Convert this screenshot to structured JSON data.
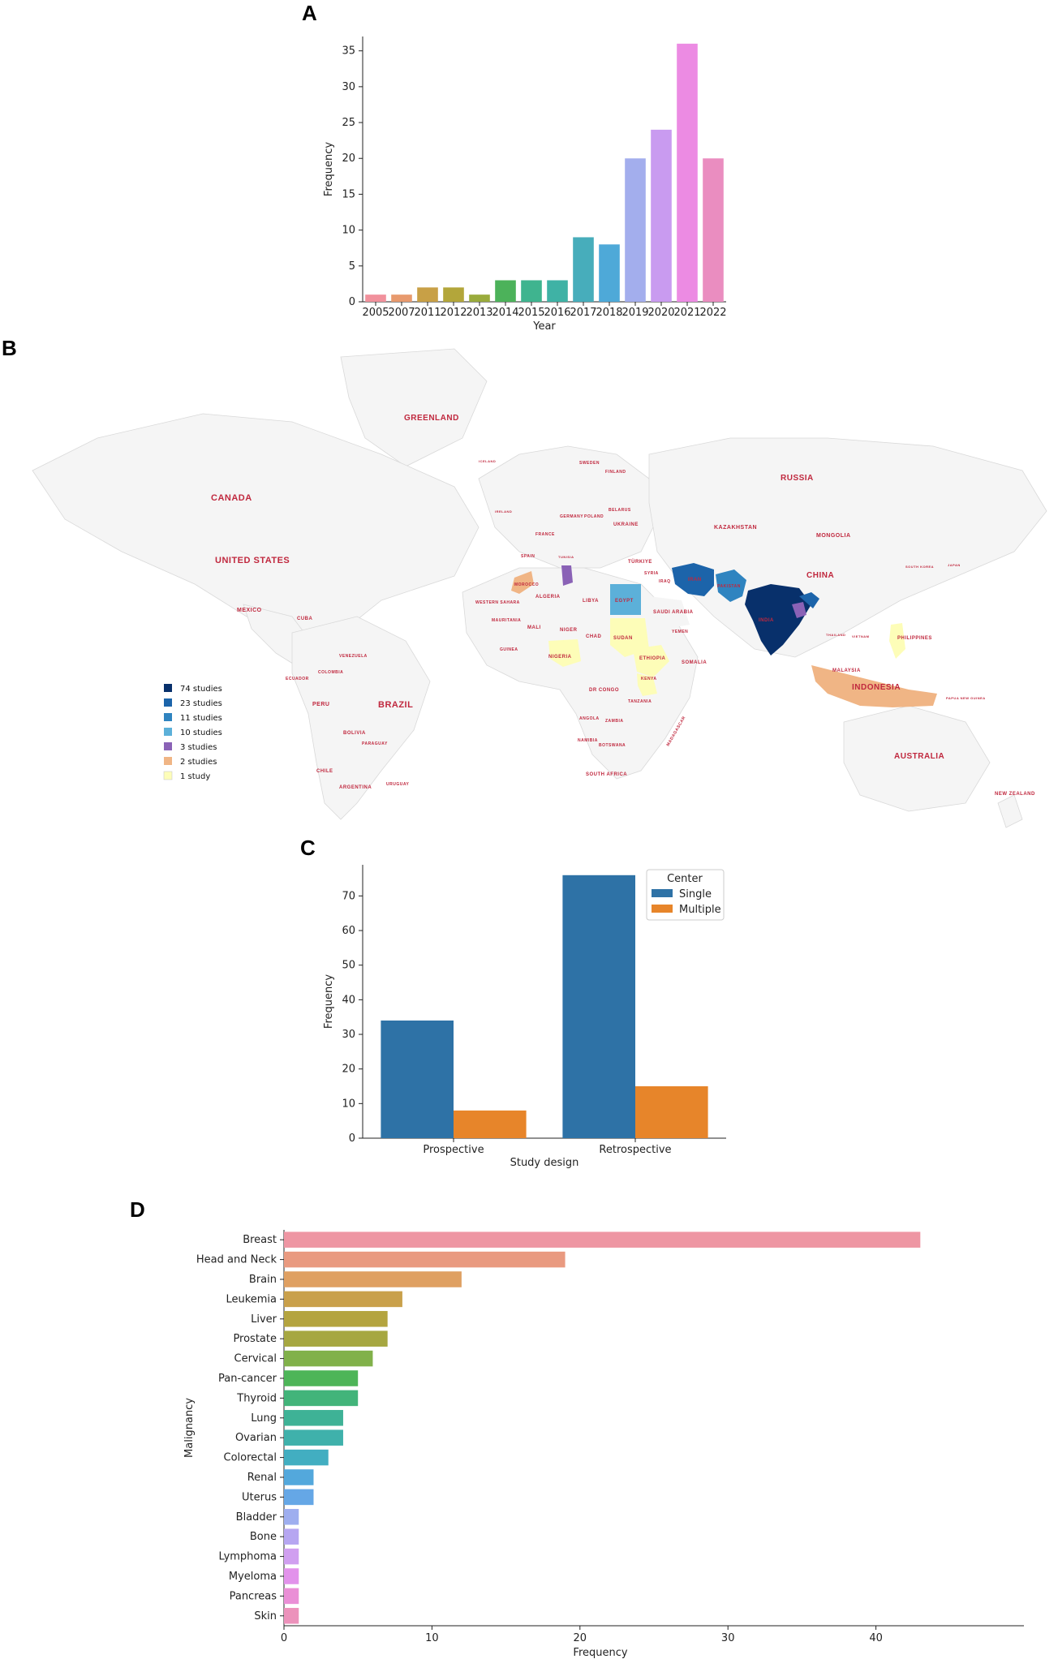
{
  "chart_data": [
    {
      "panel": "A",
      "type": "bar",
      "title": "",
      "xlabel": "Year",
      "ylabel": "Frequency",
      "categories": [
        "2005",
        "2007",
        "2011",
        "2012",
        "2013",
        "2014",
        "2015",
        "2016",
        "2017",
        "2018",
        "2019",
        "2020",
        "2021",
        "2022"
      ],
      "values": [
        1,
        1,
        2,
        2,
        1,
        3,
        3,
        3,
        9,
        8,
        20,
        24,
        36,
        20
      ],
      "colors": [
        "#f1919c",
        "#e89a6e",
        "#c8a046",
        "#b3a63a",
        "#9aab3c",
        "#4cb25a",
        "#3fb48f",
        "#3fb2a5",
        "#47adbb",
        "#4ea9d8",
        "#a3aeed",
        "#c99bf0",
        "#ec8be3",
        "#ea8dc0"
      ],
      "ylim": [
        0,
        37
      ],
      "yticks": [
        0,
        5,
        10,
        15,
        20,
        25,
        30,
        35
      ]
    },
    {
      "panel": "B",
      "type": "choropleth",
      "legend": [
        {
          "label": "74 studies",
          "color": "#08306b"
        },
        {
          "label": "23 studies",
          "color": "#1c64aa"
        },
        {
          "label": "11 studies",
          "color": "#2f84c0"
        },
        {
          "label": "10 studies",
          "color": "#5cb0d9"
        },
        {
          "label": "3 studies",
          "color": "#8a62b6"
        },
        {
          "label": "2 studies",
          "color": "#f0b585"
        },
        {
          "label": "1 study",
          "color": "#fdfdb8"
        }
      ],
      "countries": [
        {
          "name": "GREENLAND"
        },
        {
          "name": "CANADA"
        },
        {
          "name": "UNITED STATES"
        },
        {
          "name": "MEXICO"
        },
        {
          "name": "CUBA"
        },
        {
          "name": "VENEZUELA"
        },
        {
          "name": "COLOMBIA"
        },
        {
          "name": "ECUADOR"
        },
        {
          "name": "PERU"
        },
        {
          "name": "BRAZIL"
        },
        {
          "name": "BOLIVIA"
        },
        {
          "name": "PARAGUAY"
        },
        {
          "name": "CHILE"
        },
        {
          "name": "ARGENTINA"
        },
        {
          "name": "URUGUAY"
        },
        {
          "name": "RUSSIA"
        },
        {
          "name": "KAZAKHSTAN"
        },
        {
          "name": "MONGOLIA"
        },
        {
          "name": "CHINA"
        },
        {
          "name": "INDIA"
        },
        {
          "name": "IRAN"
        },
        {
          "name": "PAKISTAN"
        },
        {
          "name": "TÜRKIYE"
        },
        {
          "name": "SYRIA"
        },
        {
          "name": "IRAQ"
        },
        {
          "name": "SAUDI ARABIA"
        },
        {
          "name": "YEMEN"
        },
        {
          "name": "EGYPT"
        },
        {
          "name": "LIBYA"
        },
        {
          "name": "ALGERIA"
        },
        {
          "name": "MOROCCO"
        },
        {
          "name": "WESTERN SAHARA"
        },
        {
          "name": "MAURITANIA"
        },
        {
          "name": "MALI"
        },
        {
          "name": "NIGER"
        },
        {
          "name": "CHAD"
        },
        {
          "name": "SUDAN"
        },
        {
          "name": "ETHIOPIA"
        },
        {
          "name": "SOMALIA"
        },
        {
          "name": "KENYA"
        },
        {
          "name": "NIGERIA"
        },
        {
          "name": "GUINEA"
        },
        {
          "name": "DR CONGO"
        },
        {
          "name": "TANZANIA"
        },
        {
          "name": "ANGOLA"
        },
        {
          "name": "ZAMBIA"
        },
        {
          "name": "NAMIBIA"
        },
        {
          "name": "BOTSWANA"
        },
        {
          "name": "MADAGASCAR"
        },
        {
          "name": "SOUTH AFRICA"
        },
        {
          "name": "TUNISIA"
        },
        {
          "name": "UKRAINE"
        },
        {
          "name": "POLAND"
        },
        {
          "name": "BELARUS"
        },
        {
          "name": "FINLAND"
        },
        {
          "name": "SWEDEN"
        },
        {
          "name": "GERMANY"
        },
        {
          "name": "FRANCE"
        },
        {
          "name": "SPAIN"
        },
        {
          "name": "IRELAND"
        },
        {
          "name": "ICELAND"
        },
        {
          "name": "THAILAND"
        },
        {
          "name": "VIETNAM"
        },
        {
          "name": "MALAYSIA"
        },
        {
          "name": "PHILIPPINES"
        },
        {
          "name": "INDONESIA"
        },
        {
          "name": "PAPUA NEW GUINEA"
        },
        {
          "name": "AUSTRALIA"
        },
        {
          "name": "NEW ZEALAND"
        },
        {
          "name": "JAPAN"
        },
        {
          "name": "SOUTH KOREA"
        }
      ]
    },
    {
      "panel": "C",
      "type": "bar",
      "title": "",
      "xlabel": "Study design",
      "ylabel": "Frequency",
      "categories": [
        "Prospective",
        "Retrospective"
      ],
      "series": [
        {
          "name": "Single",
          "values": [
            34,
            76
          ],
          "color": "#2e72a6"
        },
        {
          "name": "Multiple",
          "values": [
            8,
            15
          ],
          "color": "#e7852a"
        }
      ],
      "legend_title": "Center",
      "legend_position": "top-right",
      "ylim": [
        0,
        79
      ],
      "yticks": [
        0,
        10,
        20,
        30,
        40,
        50,
        60,
        70
      ]
    },
    {
      "panel": "D",
      "type": "bar",
      "orientation": "horizontal",
      "title": "",
      "xlabel": "Frequency",
      "ylabel": "Malignancy",
      "categories": [
        "Breast",
        "Head and Neck",
        "Brain",
        "Leukemia",
        "Liver",
        "Prostate",
        "Cervical",
        "Pan-cancer",
        "Thyroid",
        "Lung",
        "Ovarian",
        "Colorectal",
        "Renal",
        "Uterus",
        "Bladder",
        "Bone",
        "Lymphoma",
        "Myeloma",
        "Pancreas",
        "Skin"
      ],
      "values": [
        43,
        19,
        12,
        8,
        7,
        7,
        6,
        5,
        5,
        4,
        4,
        3,
        2,
        2,
        1,
        1,
        1,
        1,
        1,
        1
      ],
      "colors": [
        "#ee96a3",
        "#e99a80",
        "#dfa062",
        "#c9a04b",
        "#b4a43f",
        "#a6a741",
        "#81b14a",
        "#4db558",
        "#42b47a",
        "#3eb296",
        "#3fb1ab",
        "#42aec1",
        "#53a8dc",
        "#65a7e6",
        "#9eaeef",
        "#b6a6f1",
        "#d09ff0",
        "#e292eb",
        "#ea8fd6",
        "#ec92bb"
      ],
      "xlim": [
        0,
        50
      ],
      "xticks": [
        0,
        10,
        20,
        30,
        40
      ]
    }
  ],
  "panels": {
    "a": "A",
    "b": "B",
    "c": "C",
    "d": "D"
  }
}
